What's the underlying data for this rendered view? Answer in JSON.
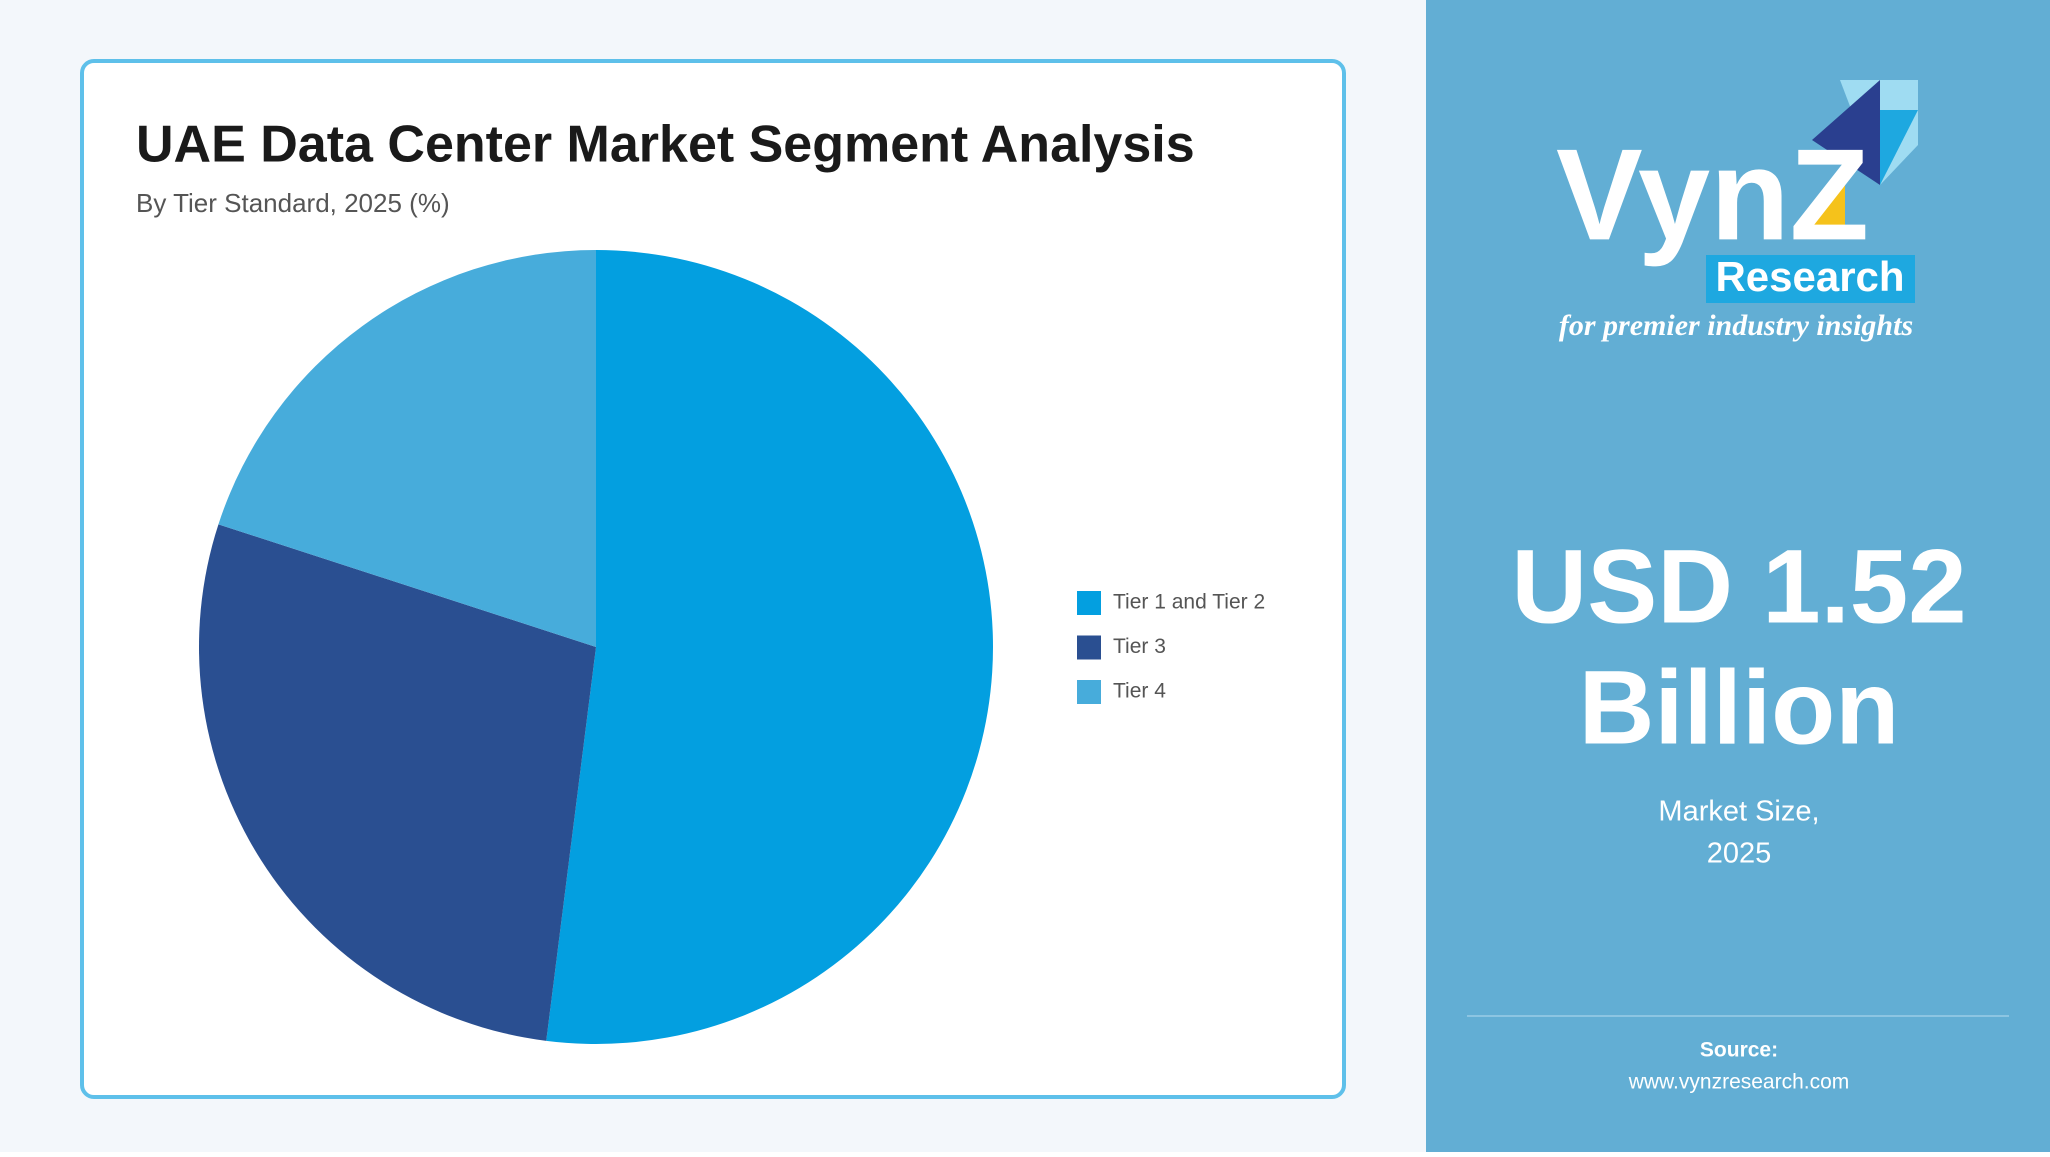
{
  "chart_data": {
    "type": "pie",
    "title": "UAE Data Center Market Segment Analysis",
    "subtitle": "By Tier Standard, 2025 (%)",
    "categories": [
      "Tier 1 and Tier 2",
      "Tier 3",
      "Tier 4"
    ],
    "values": [
      52,
      28,
      20
    ],
    "colors": [
      "#039fe0",
      "#2a4f91",
      "#47acdb"
    ],
    "legend": "right"
  },
  "sidebar": {
    "logo": {
      "name": "VynZ",
      "badge": "Research",
      "tagline": "for premier industry insights"
    },
    "headline": "USD 1.52",
    "headline_unit": "Billion",
    "caption": "Market Size,",
    "caption_year": "2025",
    "source_label": "Source:",
    "source_url": "www.vynzresearch.com"
  }
}
